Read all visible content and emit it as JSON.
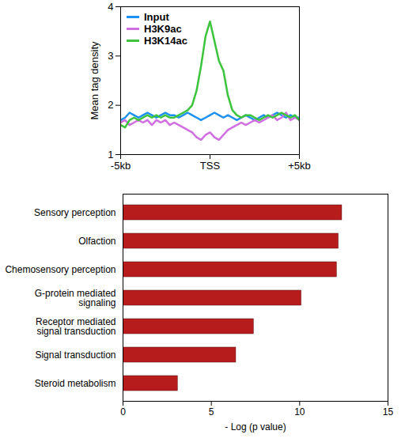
{
  "chart_data": [
    {
      "type": "line",
      "ylabel": "Mean tag density",
      "x": [
        -5,
        -4.75,
        -4.5,
        -4.25,
        -4,
        -3.75,
        -3.5,
        -3.25,
        -3,
        -2.75,
        -2.5,
        -2.25,
        -2,
        -1.75,
        -1.5,
        -1.25,
        -1,
        -0.75,
        -0.5,
        -0.25,
        0,
        0.25,
        0.5,
        0.75,
        1,
        1.25,
        1.5,
        1.75,
        2,
        2.25,
        2.5,
        2.75,
        3,
        3.25,
        3.5,
        3.75,
        4,
        4.25,
        4.5,
        4.75,
        5
      ],
      "series": [
        {
          "name": "Input",
          "color": "#1e90f0",
          "values": [
            1.7,
            1.75,
            1.85,
            1.8,
            1.75,
            1.8,
            1.85,
            1.8,
            1.75,
            1.8,
            1.85,
            1.8,
            1.8,
            1.75,
            1.8,
            1.85,
            1.8,
            1.75,
            1.7,
            1.75,
            1.8,
            1.85,
            1.8,
            1.75,
            1.8,
            1.75,
            1.7,
            1.75,
            1.8,
            1.75,
            1.7,
            1.75,
            1.8,
            1.75,
            1.8,
            1.85,
            1.8,
            1.75,
            1.8,
            1.75,
            1.75
          ]
        },
        {
          "name": "H3K9ac",
          "color": "#d070e0",
          "values": [
            1.65,
            1.7,
            1.6,
            1.65,
            1.7,
            1.65,
            1.7,
            1.6,
            1.7,
            1.65,
            1.7,
            1.6,
            1.65,
            1.6,
            1.55,
            1.5,
            1.45,
            1.35,
            1.3,
            1.4,
            1.45,
            1.35,
            1.3,
            1.4,
            1.5,
            1.55,
            1.6,
            1.65,
            1.6,
            1.65,
            1.7,
            1.65,
            1.7,
            1.75,
            1.8,
            1.7,
            1.75,
            1.85,
            1.7,
            1.75,
            1.7
          ]
        },
        {
          "name": "H3K14ac",
          "color": "#3cc43c",
          "values": [
            1.6,
            1.55,
            1.7,
            1.75,
            1.7,
            1.75,
            1.8,
            1.75,
            1.8,
            1.75,
            1.8,
            1.75,
            1.75,
            1.8,
            1.85,
            1.9,
            2,
            2.3,
            2.8,
            3.4,
            3.7,
            3.3,
            2.9,
            2.7,
            2.2,
            1.9,
            1.8,
            1.75,
            1.8,
            1.8,
            1.75,
            1.7,
            1.75,
            1.8,
            1.75,
            1.8,
            1.85,
            1.8,
            1.75,
            1.8,
            1.7
          ]
        }
      ],
      "xlim": [
        -5,
        5
      ],
      "xticks": [
        {
          "value": -5,
          "label": "-5kb"
        },
        {
          "value": 0,
          "label": "TSS"
        },
        {
          "value": 5,
          "label": "+5kb"
        }
      ],
      "ylim": [
        1,
        4
      ],
      "yticks": [
        1,
        2,
        3,
        4
      ],
      "grid": false,
      "legend": "top-left"
    },
    {
      "type": "bar",
      "orientation": "horizontal",
      "xlabel": "- Log (p value)",
      "categories": [
        "Sensory perception",
        "Olfaction",
        "Chemosensory perception",
        "G-protein mediated\nsignaling",
        "Receptor mediated\nsignal transduction",
        "Signal transduction",
        "Steroid metabolism"
      ],
      "values": [
        12.4,
        12.2,
        12.1,
        10.1,
        7.4,
        6.4,
        3.1
      ],
      "color": "#b71c1c",
      "xlim": [
        0,
        15
      ],
      "xticks": [
        0,
        5,
        10,
        15
      ],
      "grid": false
    }
  ]
}
